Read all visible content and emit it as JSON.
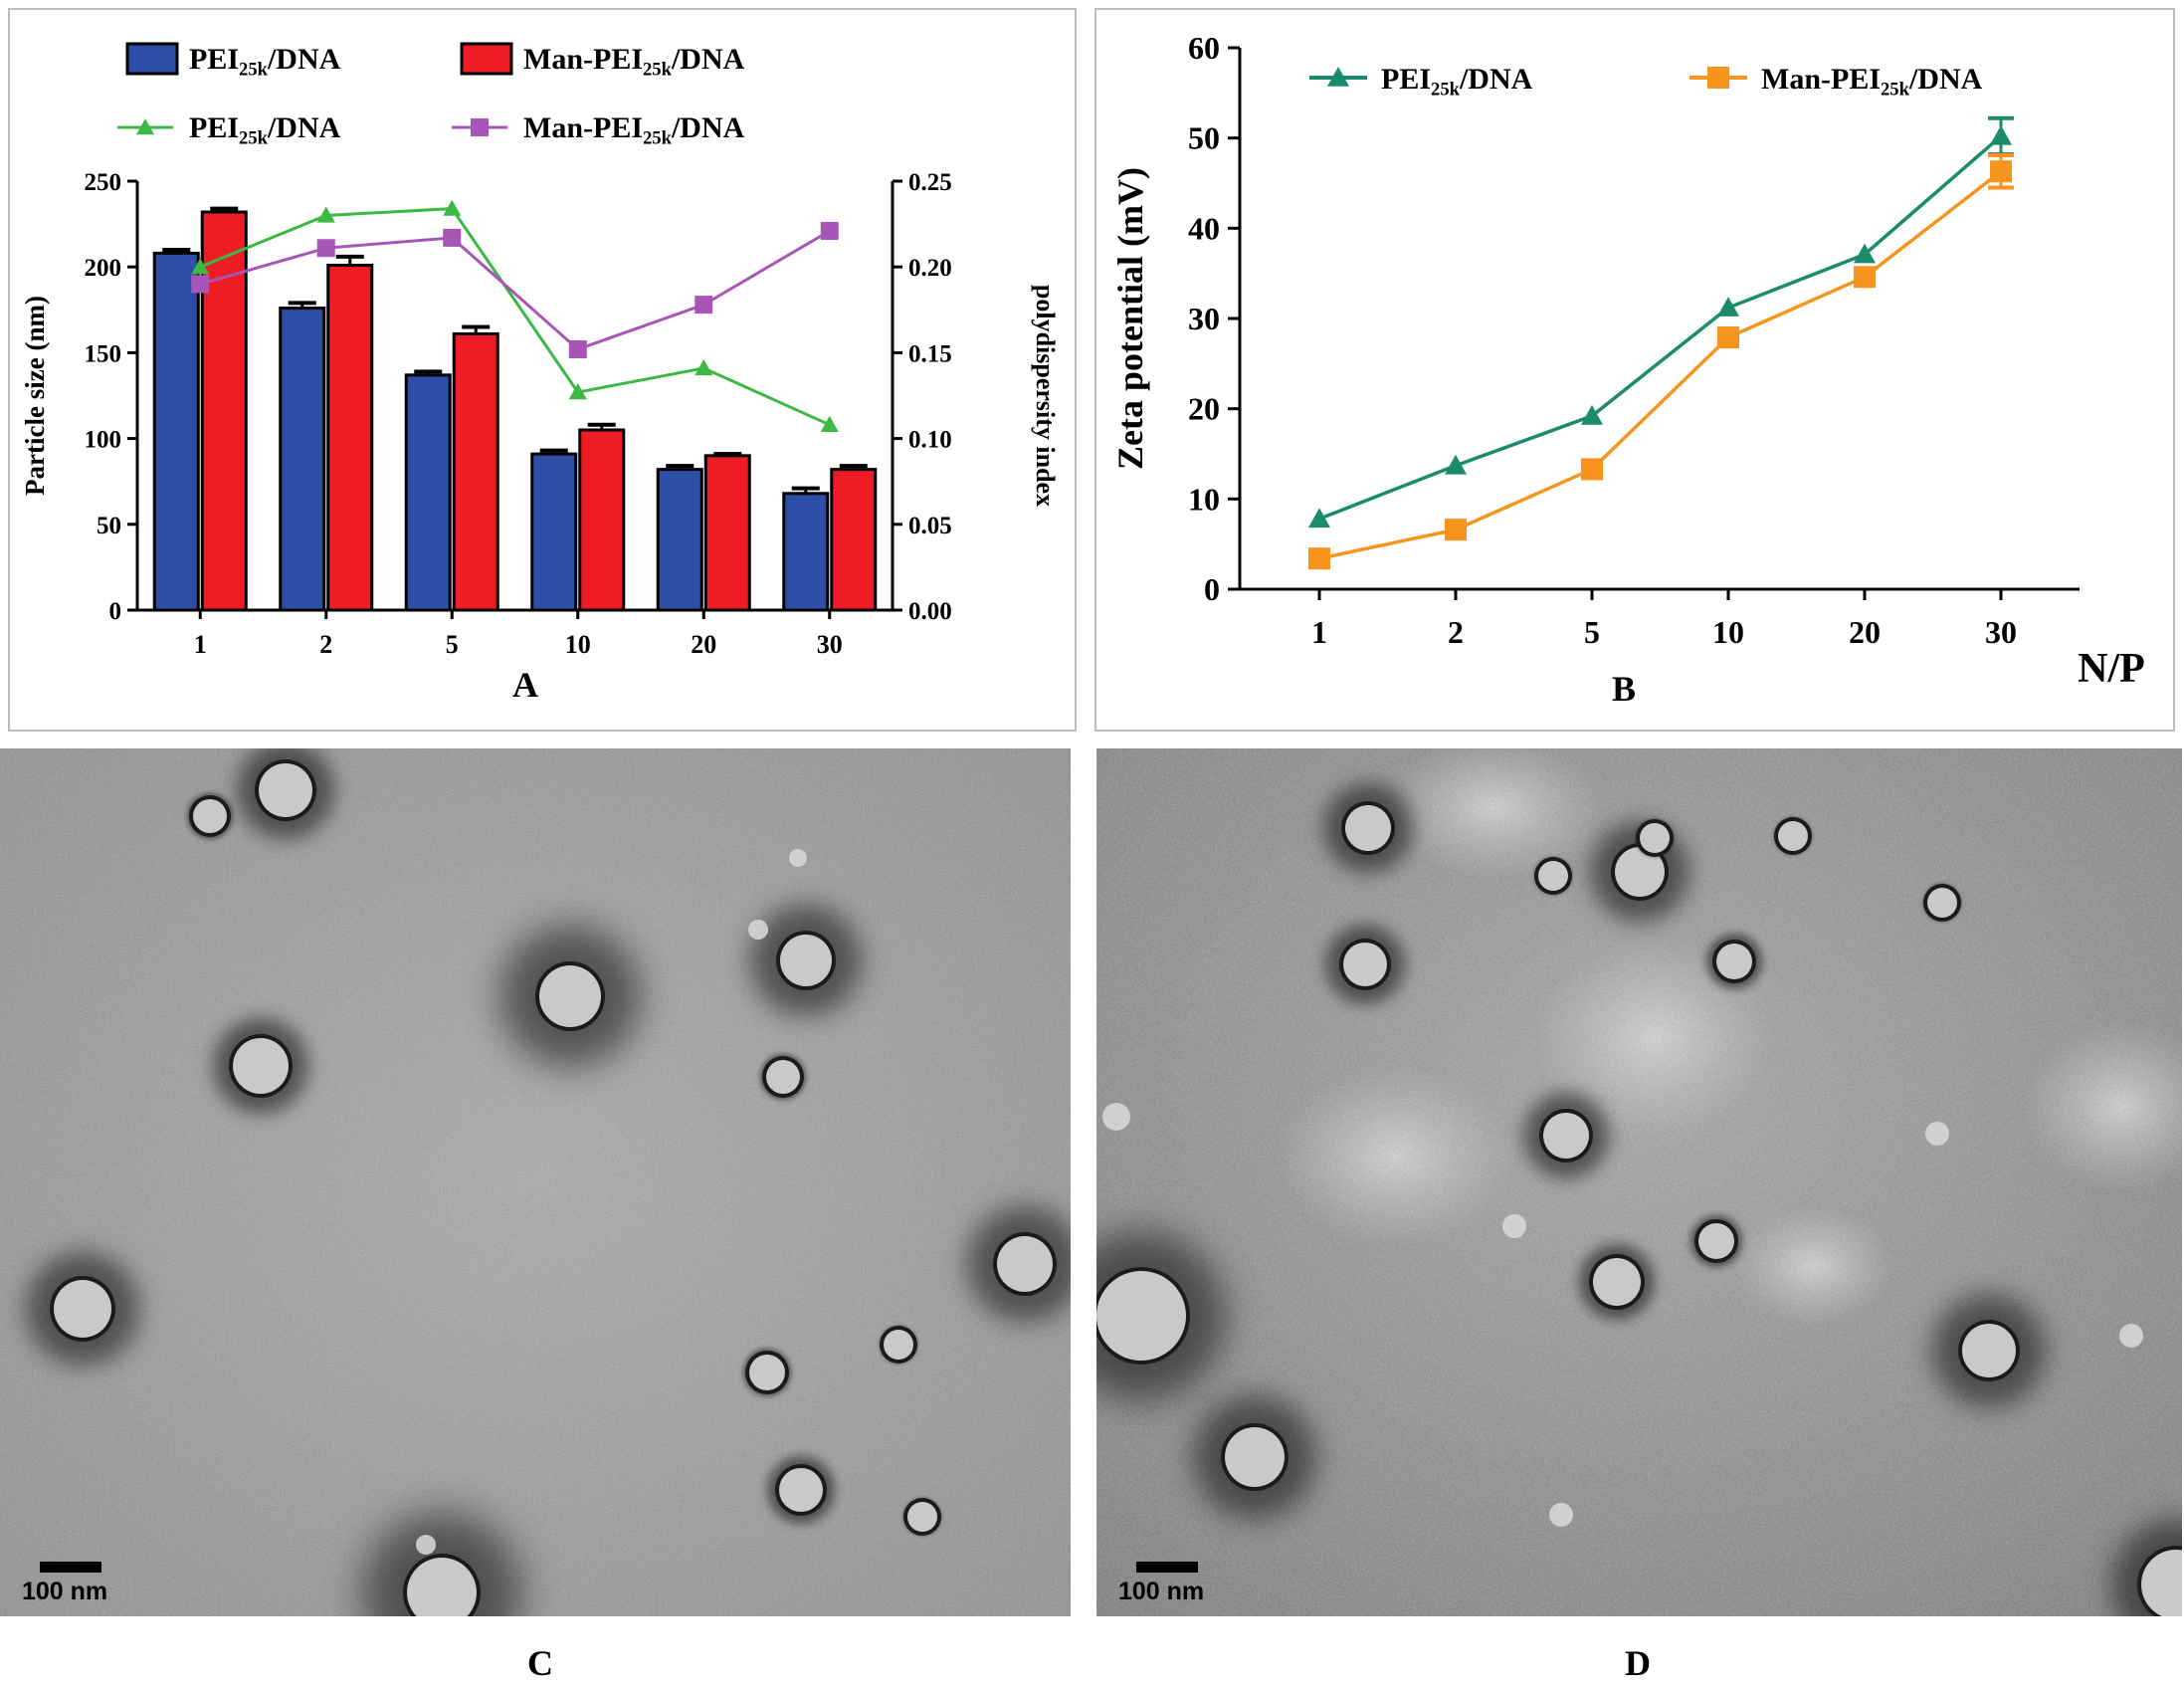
{
  "chart_data": [
    {
      "id": "A",
      "type": "bar+line",
      "panel_label": "A",
      "categories": [
        "1",
        "2",
        "5",
        "10",
        "20",
        "30"
      ],
      "ylabel": "Particle size (nm)",
      "y2label": "polydispersity index",
      "ylim": [
        0,
        250
      ],
      "yticks": [
        "0",
        "50",
        "100",
        "150",
        "200",
        "250"
      ],
      "y2lim": [
        0,
        0.25
      ],
      "y2ticks": [
        "0.00",
        "0.05",
        "0.10",
        "0.15",
        "0.20",
        "0.25"
      ],
      "bar_series": [
        {
          "legend_main": "PEI",
          "legend_sub": "25k",
          "legend_tail": "/DNA",
          "color": "#2c4ea6",
          "values": [
            208,
            176,
            137,
            91,
            82,
            68
          ],
          "errors": [
            2,
            3,
            2,
            2,
            2,
            3
          ]
        },
        {
          "legend_main": "Man-PEI",
          "legend_sub": "25k",
          "legend_tail": "/DNA",
          "color": "#ee1c24",
          "values": [
            232,
            201,
            161,
            105,
            90,
            82
          ],
          "errors": [
            2,
            5,
            4,
            3,
            1,
            2
          ]
        }
      ],
      "line_series": [
        {
          "legend_main": "PEI",
          "legend_sub": "25k",
          "legend_tail": "/DNA",
          "color": "#3cb843",
          "marker": "triangle",
          "values": [
            0.2,
            0.23,
            0.234,
            0.127,
            0.141,
            0.108
          ]
        },
        {
          "legend_main": "Man-PEI",
          "legend_sub": "25k",
          "legend_tail": "/DNA",
          "color": "#a855b8",
          "marker": "square",
          "values": [
            0.19,
            0.211,
            0.217,
            0.152,
            0.178,
            0.221
          ]
        }
      ]
    },
    {
      "id": "B",
      "type": "line",
      "panel_label": "B",
      "categories": [
        "1",
        "2",
        "5",
        "10",
        "20",
        "30"
      ],
      "xlabel": "N/P",
      "ylabel": "Zeta  potential (mV)",
      "ylim": [
        0,
        60
      ],
      "yticks": [
        "0",
        "10",
        "20",
        "30",
        "40",
        "50",
        "60"
      ],
      "series": [
        {
          "legend_main": "PEI",
          "legend_sub": "25k",
          "legend_tail": "/DNA",
          "color": "#1a8c6b",
          "marker": "triangle",
          "values": [
            7.8,
            13.7,
            19.2,
            31.2,
            37.1,
            50.2
          ],
          "errors": [
            0,
            0,
            0,
            0,
            0,
            2
          ]
        },
        {
          "legend_main": "Man-PEI",
          "legend_sub": "25k",
          "legend_tail": "/DNA",
          "color": "#f7941d",
          "marker": "square",
          "values": [
            3.4,
            6.6,
            13.3,
            27.9,
            34.6,
            46.3
          ],
          "errors": [
            0,
            0,
            0,
            0,
            0,
            1.8
          ]
        }
      ]
    }
  ],
  "micrographs": [
    {
      "id": "C",
      "panel_label": "C",
      "scale_label": "100 nm"
    },
    {
      "id": "D",
      "panel_label": "D",
      "scale_label": "100 nm"
    }
  ]
}
